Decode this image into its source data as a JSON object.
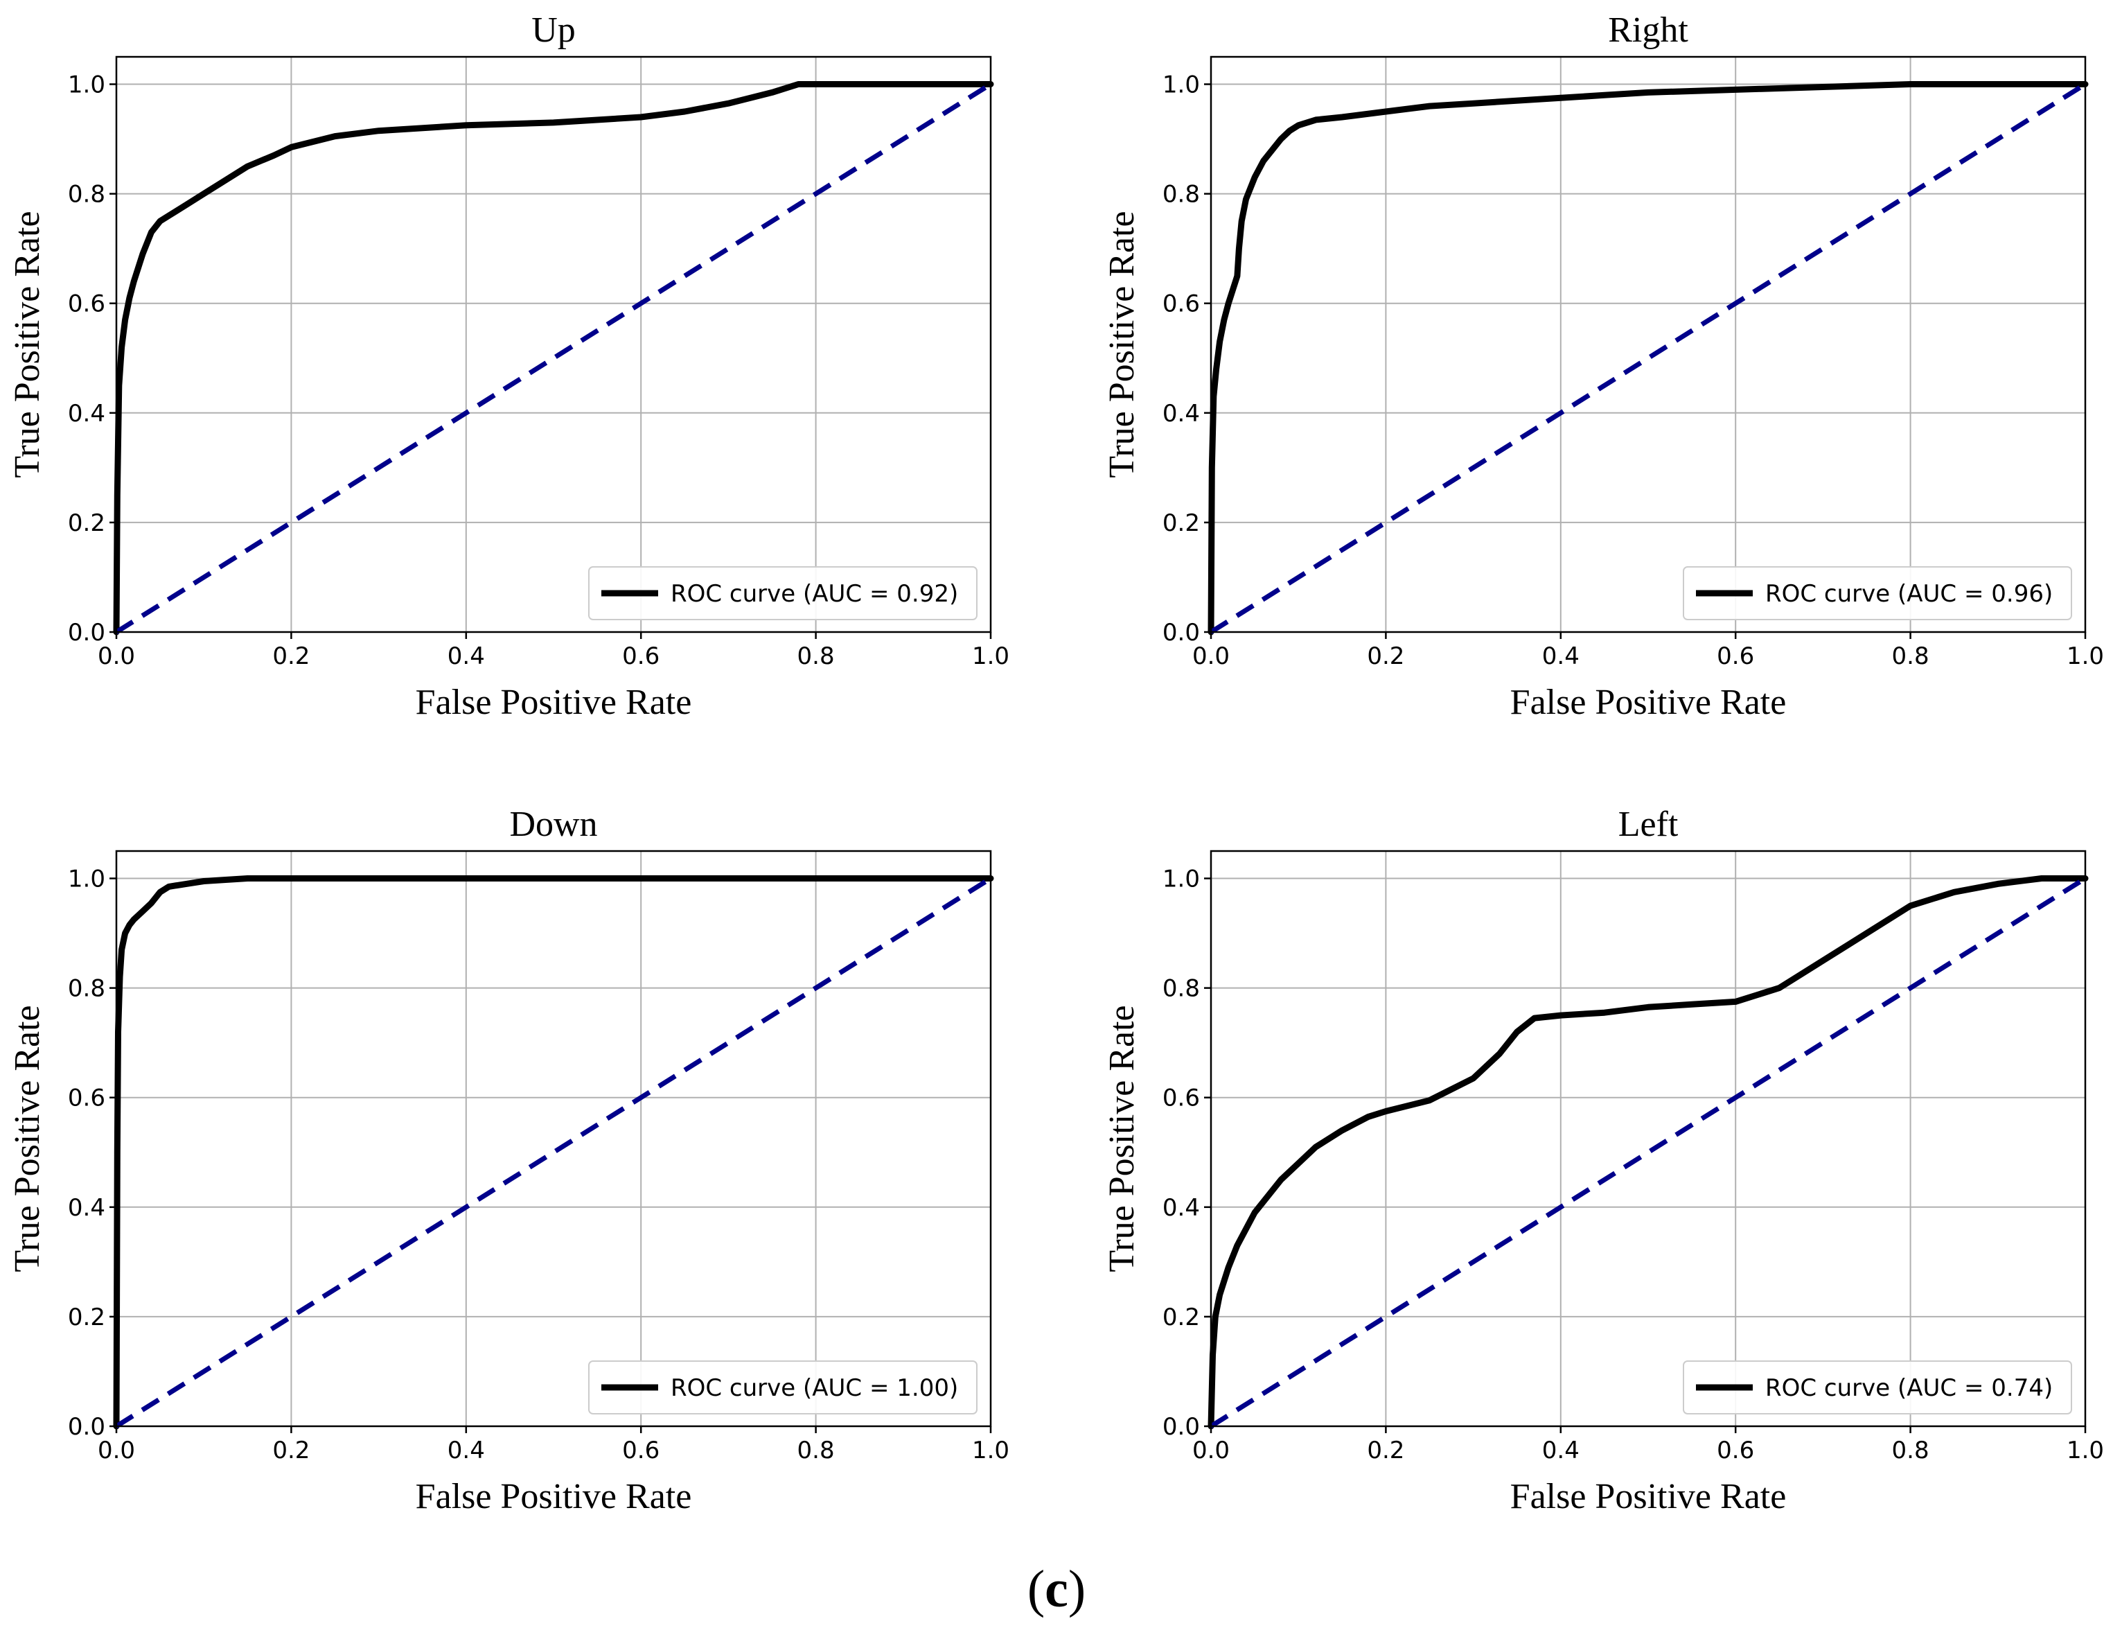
{
  "caption": {
    "open": "(",
    "letter": "c",
    "close": ")"
  },
  "colors": {
    "roc": "#000000",
    "chance": "#00008b",
    "grid": "#b0b0b0",
    "axis": "#000000"
  },
  "chart_data": [
    {
      "type": "line",
      "title": "Up",
      "xlabel": "False Positive Rate",
      "ylabel": "True Positive Rate",
      "xlim": [
        0,
        1
      ],
      "ylim": [
        0,
        1.05
      ],
      "xticks": [
        "0.0",
        "0.2",
        "0.4",
        "0.6",
        "0.8",
        "1.0"
      ],
      "yticks": [
        "0.0",
        "0.2",
        "0.4",
        "0.6",
        "0.8",
        "1.0"
      ],
      "grid": true,
      "legend_position": "lower-right",
      "series": [
        {
          "name": "ROC curve (AUC = 0.92)",
          "style": "solid",
          "x": [
            0,
            0.001,
            0.003,
            0.006,
            0.01,
            0.015,
            0.02,
            0.03,
            0.04,
            0.05,
            0.06,
            0.08,
            0.1,
            0.12,
            0.15,
            0.18,
            0.2,
            0.25,
            0.3,
            0.4,
            0.5,
            0.6,
            0.65,
            0.7,
            0.75,
            0.77,
            0.78,
            0.8,
            0.9,
            1.0
          ],
          "y": [
            0,
            0.25,
            0.45,
            0.52,
            0.57,
            0.61,
            0.64,
            0.69,
            0.73,
            0.75,
            0.76,
            0.78,
            0.8,
            0.82,
            0.85,
            0.87,
            0.885,
            0.905,
            0.915,
            0.925,
            0.93,
            0.94,
            0.95,
            0.965,
            0.985,
            0.995,
            1.0,
            1.0,
            1.0,
            1.0
          ]
        },
        {
          "name": "chance",
          "style": "dashed",
          "x": [
            0,
            1
          ],
          "y": [
            0,
            1
          ]
        }
      ]
    },
    {
      "type": "line",
      "title": "Right",
      "xlabel": "False Positive Rate",
      "ylabel": "True Positive Rate",
      "xlim": [
        0,
        1
      ],
      "ylim": [
        0,
        1.05
      ],
      "xticks": [
        "0.0",
        "0.2",
        "0.4",
        "0.6",
        "0.8",
        "1.0"
      ],
      "yticks": [
        "0.0",
        "0.2",
        "0.4",
        "0.6",
        "0.8",
        "1.0"
      ],
      "grid": true,
      "legend_position": "lower-right",
      "series": [
        {
          "name": "ROC curve (AUC = 0.96)",
          "style": "solid",
          "x": [
            0,
            0.001,
            0.003,
            0.006,
            0.01,
            0.015,
            0.02,
            0.03,
            0.032,
            0.035,
            0.04,
            0.05,
            0.06,
            0.07,
            0.08,
            0.09,
            0.1,
            0.12,
            0.15,
            0.2,
            0.25,
            0.3,
            0.4,
            0.45,
            0.5,
            0.6,
            0.7,
            0.8,
            0.9,
            1.0
          ],
          "y": [
            0,
            0.3,
            0.43,
            0.48,
            0.53,
            0.57,
            0.6,
            0.65,
            0.7,
            0.75,
            0.79,
            0.83,
            0.86,
            0.88,
            0.9,
            0.915,
            0.925,
            0.935,
            0.94,
            0.95,
            0.96,
            0.965,
            0.975,
            0.98,
            0.985,
            0.99,
            0.995,
            1.0,
            1.0,
            1.0
          ]
        },
        {
          "name": "chance",
          "style": "dashed",
          "x": [
            0,
            1
          ],
          "y": [
            0,
            1
          ]
        }
      ]
    },
    {
      "type": "line",
      "title": "Down",
      "xlabel": "False Positive Rate",
      "ylabel": "True Positive Rate",
      "xlim": [
        0,
        1
      ],
      "ylim": [
        0,
        1.05
      ],
      "xticks": [
        "0.0",
        "0.2",
        "0.4",
        "0.6",
        "0.8",
        "1.0"
      ],
      "yticks": [
        "0.0",
        "0.2",
        "0.4",
        "0.6",
        "0.8",
        "1.0"
      ],
      "grid": true,
      "legend_position": "lower-right",
      "series": [
        {
          "name": "ROC curve (AUC = 1.00)",
          "style": "solid",
          "x": [
            0,
            0.001,
            0.002,
            0.004,
            0.006,
            0.01,
            0.015,
            0.02,
            0.03,
            0.04,
            0.05,
            0.06,
            0.08,
            0.1,
            0.15,
            0.2,
            0.4,
            0.6,
            0.8,
            1.0
          ],
          "y": [
            0,
            0.5,
            0.72,
            0.82,
            0.87,
            0.9,
            0.915,
            0.925,
            0.94,
            0.955,
            0.975,
            0.985,
            0.99,
            0.995,
            1.0,
            1.0,
            1.0,
            1.0,
            1.0,
            1.0
          ]
        },
        {
          "name": "chance",
          "style": "dashed",
          "x": [
            0,
            1
          ],
          "y": [
            0,
            1
          ]
        }
      ]
    },
    {
      "type": "line",
      "title": "Left",
      "xlabel": "False Positive Rate",
      "ylabel": "True Positive Rate",
      "xlim": [
        0,
        1
      ],
      "ylim": [
        0,
        1.05
      ],
      "xticks": [
        "0.0",
        "0.2",
        "0.4",
        "0.6",
        "0.8",
        "1.0"
      ],
      "yticks": [
        "0.0",
        "0.2",
        "0.4",
        "0.6",
        "0.8",
        "1.0"
      ],
      "grid": true,
      "legend_position": "lower-right",
      "series": [
        {
          "name": "ROC curve (AUC = 0.74)",
          "style": "solid",
          "x": [
            0,
            0.002,
            0.005,
            0.01,
            0.02,
            0.03,
            0.04,
            0.05,
            0.06,
            0.08,
            0.1,
            0.12,
            0.15,
            0.18,
            0.2,
            0.25,
            0.3,
            0.33,
            0.35,
            0.37,
            0.4,
            0.45,
            0.5,
            0.55,
            0.6,
            0.65,
            0.7,
            0.75,
            0.8,
            0.85,
            0.9,
            0.95,
            1.0
          ],
          "y": [
            0,
            0.13,
            0.2,
            0.24,
            0.29,
            0.33,
            0.36,
            0.39,
            0.41,
            0.45,
            0.48,
            0.51,
            0.54,
            0.565,
            0.575,
            0.595,
            0.635,
            0.68,
            0.72,
            0.745,
            0.75,
            0.755,
            0.765,
            0.77,
            0.775,
            0.8,
            0.85,
            0.9,
            0.95,
            0.975,
            0.99,
            1.0,
            1.0
          ]
        },
        {
          "name": "chance",
          "style": "dashed",
          "x": [
            0,
            1
          ],
          "y": [
            0,
            1
          ]
        }
      ]
    }
  ]
}
